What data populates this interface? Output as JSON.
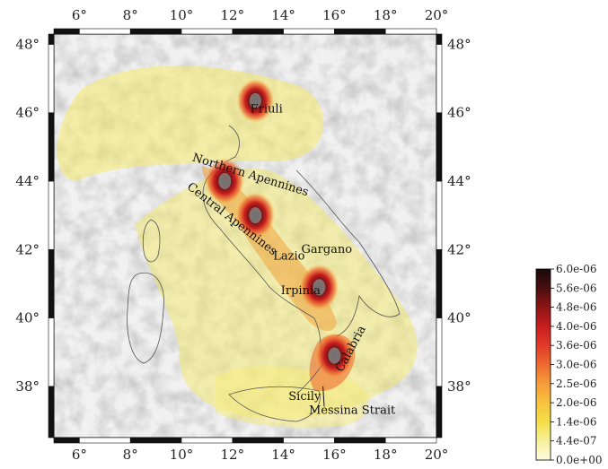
{
  "map": {
    "lon_ticks": [
      {
        "value": 6,
        "label": "6°"
      },
      {
        "value": 8,
        "label": "8°"
      },
      {
        "value": 10,
        "label": "10°"
      },
      {
        "value": 12,
        "label": "12°"
      },
      {
        "value": 14,
        "label": "14°"
      },
      {
        "value": 16,
        "label": "16°"
      },
      {
        "value": 18,
        "label": "18°"
      },
      {
        "value": 20,
        "label": "20°"
      }
    ],
    "lat_ticks": [
      {
        "value": 48,
        "label": "48°"
      },
      {
        "value": 46,
        "label": "46°"
      },
      {
        "value": 44,
        "label": "44°"
      },
      {
        "value": 42,
        "label": "42°"
      },
      {
        "value": 40,
        "label": "40°"
      },
      {
        "value": 38,
        "label": "38°"
      }
    ],
    "lon_range": [
      5,
      20
    ],
    "lat_range": [
      36.5,
      48.3
    ],
    "places": [
      {
        "name": "Friuli",
        "lon": 12.7,
        "lat": 46.0
      },
      {
        "name": "Northern Apennines",
        "lon": 10.4,
        "lat": 44.6,
        "rotate": 17
      },
      {
        "name": "Central Apennines",
        "lon": 10.2,
        "lat": 43.8,
        "rotate": 38
      },
      {
        "name": "Lazio",
        "lon": 13.6,
        "lat": 41.7
      },
      {
        "name": "Gargano",
        "lon": 14.7,
        "lat": 41.9
      },
      {
        "name": "Irpinia",
        "lon": 13.9,
        "lat": 40.7
      },
      {
        "name": "Calabria",
        "lon": 16.3,
        "lat": 38.4,
        "rotate": -62
      },
      {
        "name": "Sicily",
        "lon": 14.2,
        "lat": 37.6
      },
      {
        "name": "Messina Strait",
        "lon": 15.0,
        "lat": 37.2
      }
    ],
    "hotspots": [
      {
        "lon": 12.9,
        "lat": 46.35,
        "level": 0.95
      },
      {
        "lon": 11.7,
        "lat": 44.0,
        "level": 1.0
      },
      {
        "lon": 12.9,
        "lat": 43.0,
        "level": 1.0
      },
      {
        "lon": 15.4,
        "lat": 40.9,
        "level": 1.0
      },
      {
        "lon": 16.0,
        "lat": 38.9,
        "level": 1.0
      }
    ]
  },
  "colorbar": {
    "labels": [
      "6.0e-06",
      "5.6e-06",
      "4.8e-06",
      "4.0e-06",
      "3.6e-06",
      "3.0e-06",
      "2.5e-06",
      "2.0e-06",
      "1.4e-06",
      "4.4e-07",
      "0.0e+00"
    ],
    "colors": [
      "#1a0a0a",
      "#4a0f0f",
      "#8e1414",
      "#c81e1e",
      "#e03a28",
      "#ee6a30",
      "#f59c3c",
      "#f7c23e",
      "#f5de48",
      "#f7f09a",
      "#fffbe0"
    ]
  }
}
